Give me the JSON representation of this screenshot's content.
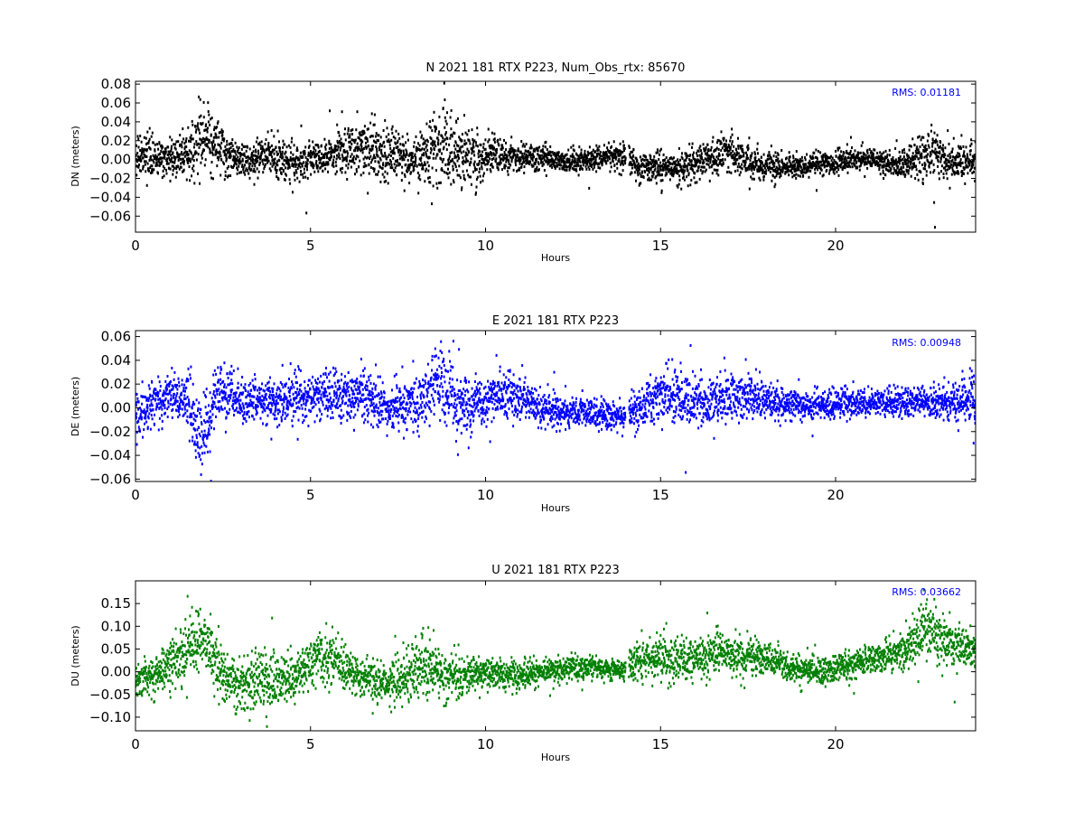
{
  "figure": {
    "background": "#ffffff"
  },
  "chart_data": [
    {
      "type": "scatter",
      "title": "N 2021 181 RTX  P223, Num_Obs_rtx: 85670",
      "xlabel": "Hours",
      "ylabel": "DN (meters)",
      "xlim": [
        0,
        24
      ],
      "ylim": [
        -0.077,
        0.083
      ],
      "xticks": [
        0,
        5,
        10,
        15,
        20
      ],
      "yticks": [
        -0.06,
        -0.04,
        -0.02,
        0.0,
        0.02,
        0.04,
        0.06,
        0.08
      ],
      "ytick_labels": [
        "−0.06",
        "−0.04",
        "−0.02",
        "0.00",
        "0.02",
        "0.04",
        "0.06",
        "0.08"
      ],
      "rms_label": "RMS:  0.01181",
      "color": "#000000",
      "rms_color": "#0000ff",
      "grid": false,
      "gap_hours": 14.05,
      "series": [
        {
          "x": [
            0,
            0.5,
            1,
            1.5,
            1.9,
            2.3,
            2.8,
            3.3,
            3.7,
            4.2,
            4.6,
            5,
            5.5,
            6,
            6.5,
            7,
            7.5,
            8,
            8.5,
            8.8,
            9.2,
            9.7,
            10,
            10.5,
            11,
            11.5,
            12,
            12.5,
            13,
            13.5,
            14,
            14.3,
            14.8,
            15.3,
            15.8,
            16.3,
            16.8,
            17.3,
            17.8,
            18.3,
            18.8,
            19.3,
            19.8,
            20.3,
            20.8,
            21.3,
            21.8,
            22.3,
            22.8,
            23.3,
            24
          ],
          "y": [
            0.004,
            0.0,
            0.002,
            0.005,
            0.025,
            0.015,
            0.002,
            -0.002,
            0.008,
            0.0,
            -0.003,
            0.001,
            0.005,
            0.01,
            0.012,
            0.008,
            0.005,
            -0.004,
            0.012,
            0.015,
            0.008,
            -0.002,
            0.005,
            0.004,
            0.003,
            0.001,
            0.0,
            -0.002,
            0.0,
            0.003,
            0.003,
            -0.008,
            -0.008,
            -0.007,
            -0.006,
            -0.002,
            0.008,
            0.002,
            -0.006,
            -0.007,
            -0.008,
            -0.006,
            -0.004,
            -0.002,
            0.002,
            -0.003,
            -0.005,
            0.002,
            0.004,
            -0.002,
            0.0
          ],
          "spread": [
            0.009,
            0.01,
            0.009,
            0.012,
            0.018,
            0.014,
            0.01,
            0.009,
            0.01,
            0.012,
            0.01,
            0.009,
            0.01,
            0.012,
            0.014,
            0.016,
            0.012,
            0.012,
            0.02,
            0.024,
            0.02,
            0.014,
            0.01,
            0.008,
            0.008,
            0.007,
            0.006,
            0.006,
            0.006,
            0.006,
            0.007,
            0.008,
            0.008,
            0.008,
            0.008,
            0.009,
            0.011,
            0.009,
            0.007,
            0.007,
            0.006,
            0.006,
            0.006,
            0.006,
            0.006,
            0.006,
            0.007,
            0.011,
            0.012,
            0.01,
            0.01
          ]
        }
      ]
    },
    {
      "type": "scatter",
      "title": "E 2021 181 RTX  P223",
      "xlabel": "Hours",
      "ylabel": "DE (meters)",
      "xlim": [
        0,
        24
      ],
      "ylim": [
        -0.062,
        0.065
      ],
      "xticks": [
        0,
        5,
        10,
        15,
        20
      ],
      "yticks": [
        -0.06,
        -0.04,
        -0.02,
        0.0,
        0.02,
        0.04,
        0.06
      ],
      "ytick_labels": [
        "−0.06",
        "−0.04",
        "−0.02",
        "0.00",
        "0.02",
        "0.04",
        "0.06"
      ],
      "rms_label": "RMS:  0.00948",
      "color": "#0000ff",
      "rms_color": "#0000ff",
      "grid": false,
      "gap_hours": 14.05,
      "series": [
        {
          "x": [
            0,
            0.5,
            1,
            1.5,
            1.9,
            2.3,
            2.8,
            3.3,
            3.8,
            4.3,
            4.8,
            5.3,
            5.8,
            6.3,
            6.8,
            7.3,
            7.8,
            8.3,
            8.7,
            9.1,
            9.5,
            10,
            10.5,
            11,
            11.5,
            12,
            12.5,
            13,
            13.5,
            14,
            14.3,
            14.8,
            15.3,
            15.8,
            16.3,
            16.8,
            17.3,
            17.8,
            18.3,
            18.8,
            19.3,
            19.8,
            20.3,
            20.8,
            21.3,
            21.8,
            22.3,
            22.8,
            23.3,
            23.8,
            24
          ],
          "y": [
            -0.005,
            0.005,
            0.01,
            0.005,
            -0.025,
            0.01,
            0.01,
            0.005,
            0.004,
            0.008,
            0.008,
            0.01,
            0.01,
            0.01,
            0.006,
            0.0,
            0.002,
            0.008,
            0.025,
            0.008,
            -0.002,
            0.005,
            0.012,
            0.008,
            0.0,
            -0.004,
            -0.004,
            -0.005,
            -0.006,
            -0.006,
            -0.002,
            0.008,
            0.012,
            0.006,
            0.006,
            0.008,
            0.01,
            0.008,
            0.004,
            0.003,
            0.002,
            0.002,
            0.004,
            0.004,
            0.004,
            0.005,
            0.005,
            0.004,
            0.004,
            0.006,
            0.008
          ],
          "spread": [
            0.009,
            0.01,
            0.01,
            0.012,
            0.018,
            0.012,
            0.01,
            0.009,
            0.009,
            0.01,
            0.01,
            0.01,
            0.011,
            0.011,
            0.01,
            0.009,
            0.01,
            0.012,
            0.018,
            0.014,
            0.012,
            0.01,
            0.01,
            0.009,
            0.007,
            0.006,
            0.006,
            0.006,
            0.006,
            0.006,
            0.008,
            0.01,
            0.011,
            0.01,
            0.009,
            0.01,
            0.01,
            0.009,
            0.007,
            0.006,
            0.006,
            0.006,
            0.006,
            0.006,
            0.006,
            0.006,
            0.006,
            0.006,
            0.007,
            0.01,
            0.012
          ]
        }
      ]
    },
    {
      "type": "scatter",
      "title": "U 2021 181 RTX  P223",
      "xlabel": "Hours",
      "ylabel": "DU (meters)",
      "xlim": [
        0,
        24
      ],
      "ylim": [
        -0.13,
        0.2
      ],
      "xticks": [
        0,
        5,
        10,
        15,
        20
      ],
      "yticks": [
        -0.1,
        -0.05,
        0.0,
        0.05,
        0.1,
        0.15
      ],
      "ytick_labels": [
        "−0.10",
        "−0.05",
        "0.00",
        "0.05",
        "0.10",
        "0.15"
      ],
      "rms_label": "RMS:  0.03662",
      "color": "#008000",
      "rms_color": "#0000ff",
      "grid": false,
      "gap_hours": 14.05,
      "series": [
        {
          "x": [
            0,
            0.5,
            1,
            1.5,
            1.8,
            2.2,
            2.6,
            3.0,
            3.5,
            4.0,
            4.5,
            5.0,
            5.5,
            6.0,
            6.5,
            7.0,
            7.5,
            8.0,
            8.5,
            9.0,
            9.5,
            10,
            10.5,
            11,
            11.5,
            12,
            12.5,
            13,
            13.5,
            14,
            14.2,
            14.7,
            15.2,
            15.7,
            16.2,
            16.7,
            17.2,
            17.7,
            18.2,
            18.7,
            19.2,
            19.7,
            20.2,
            20.7,
            21.2,
            21.7,
            22.2,
            22.6,
            23.0,
            23.5,
            24
          ],
          "y": [
            -0.02,
            -0.01,
            0.02,
            0.05,
            0.08,
            0.04,
            -0.02,
            -0.03,
            -0.02,
            -0.02,
            -0.01,
            0.02,
            0.04,
            0.0,
            -0.01,
            -0.03,
            -0.02,
            0.0,
            0.01,
            -0.01,
            -0.01,
            -0.005,
            -0.005,
            -0.005,
            0.0,
            0.005,
            0.01,
            0.01,
            0.005,
            0.005,
            0.02,
            0.03,
            0.025,
            0.03,
            0.03,
            0.05,
            0.03,
            0.035,
            0.025,
            0.01,
            0.005,
            0.0,
            0.01,
            0.02,
            0.03,
            0.04,
            0.06,
            0.1,
            0.07,
            0.06,
            0.05
          ],
          "spread": [
            0.02,
            0.02,
            0.025,
            0.03,
            0.035,
            0.03,
            0.03,
            0.03,
            0.03,
            0.03,
            0.025,
            0.025,
            0.03,
            0.025,
            0.02,
            0.025,
            0.03,
            0.035,
            0.03,
            0.025,
            0.02,
            0.018,
            0.016,
            0.015,
            0.014,
            0.012,
            0.012,
            0.012,
            0.012,
            0.014,
            0.02,
            0.022,
            0.022,
            0.022,
            0.022,
            0.024,
            0.02,
            0.018,
            0.016,
            0.016,
            0.016,
            0.016,
            0.016,
            0.016,
            0.016,
            0.018,
            0.025,
            0.035,
            0.03,
            0.025,
            0.022
          ]
        }
      ]
    }
  ]
}
